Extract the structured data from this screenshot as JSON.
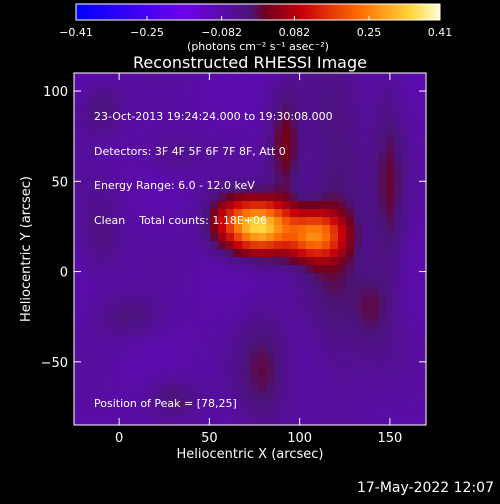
{
  "chart_data": {
    "type": "heatmap",
    "title": "Reconstructed RHESSI Image",
    "xlabel": "Heliocentric X (arcsec)",
    "ylabel": "Heliocentric Y (arcsec)",
    "xlim": [
      -25,
      170
    ],
    "ylim": [
      -85,
      110
    ],
    "x_ticks": [
      0,
      50,
      100,
      150
    ],
    "y_ticks": [
      -50,
      0,
      50,
      100
    ],
    "x_tick_labels": [
      "0",
      "50",
      "100",
      "150"
    ],
    "y_tick_labels": [
      "−50",
      "0",
      "50",
      "100"
    ],
    "colorbar": {
      "range": [
        -0.41,
        0.41
      ],
      "ticks": [
        -0.41,
        -0.25,
        -0.082,
        0.082,
        0.25,
        0.41
      ],
      "tick_labels": [
        "−0.41",
        "−0.25",
        "−0.082",
        "0.082",
        "0.25",
        "0.41"
      ],
      "unit_label": "(photons cm⁻² s⁻¹ asec⁻²)",
      "colors": [
        "#0000ff",
        "#7a00e0",
        "#c00028",
        "#ff7000",
        "#ffffd0"
      ]
    },
    "annotations": [
      "23-Oct-2013 19:24:24.000 to 19:30:08.000",
      "Detectors: 3F 4F 5F 6F 7F 8F, Att 0",
      "Energy Range: 6.0 - 12.0 keV",
      "Clean    Total counts: 1.18E+06"
    ],
    "peak_label": "Position of Peak = [78,25]",
    "peak": [
      78,
      25
    ],
    "sources": [
      {
        "x": 78,
        "y": 25,
        "sx": 12,
        "sy": 10,
        "amp": 0.41
      },
      {
        "x": 108,
        "y": 20,
        "sx": 11,
        "sy": 9,
        "amp": 0.28
      },
      {
        "x": 60,
        "y": 28,
        "sx": 9,
        "sy": 10,
        "amp": 0.1
      },
      {
        "x": 92,
        "y": 70,
        "sx": 6,
        "sy": 20,
        "amp": 0.1
      },
      {
        "x": 120,
        "y": 25,
        "sx": 12,
        "sy": 60,
        "amp": 0.07
      },
      {
        "x": 150,
        "y": 45,
        "sx": 6,
        "sy": 45,
        "amp": 0.07
      },
      {
        "x": 80,
        "y": -55,
        "sx": 10,
        "sy": 22,
        "amp": 0.07
      },
      {
        "x": 140,
        "y": -20,
        "sx": 7,
        "sy": 15,
        "amp": 0.06
      },
      {
        "x": -10,
        "y": 90,
        "sx": 8,
        "sy": 10,
        "amp": 0.06
      },
      {
        "x": 5,
        "y": -25,
        "sx": 12,
        "sy": 8,
        "amp": 0.05
      },
      {
        "x": 30,
        "y": -70,
        "sx": 10,
        "sy": 8,
        "amp": 0.06
      },
      {
        "x": -10,
        "y": 20,
        "sx": 8,
        "sy": 15,
        "amp": 0.05
      },
      {
        "x": 30,
        "y": 65,
        "sx": 12,
        "sy": 8,
        "amp": 0.04
      }
    ]
  },
  "footer": {
    "date": "17-May-2022 12:07"
  }
}
